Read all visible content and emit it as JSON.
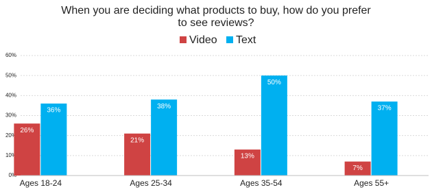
{
  "chart_data": {
    "type": "bar",
    "title": [
      "When you are deciding what products to buy, how do you prefer",
      "to see reviews?"
    ],
    "categories": [
      "Ages 18-24",
      "Ages 25-34",
      "Ages 35-54",
      "Ages 55+"
    ],
    "series": [
      {
        "name": "Video",
        "color": "#cf4343",
        "values": [
          26,
          21,
          13,
          7
        ],
        "value_labels": [
          "26%",
          "21%",
          "13%",
          "7%"
        ]
      },
      {
        "name": "Text",
        "color": "#00b0f0",
        "values": [
          36,
          38,
          50,
          37
        ],
        "value_labels": [
          "36%",
          "38%",
          "50%",
          "37%"
        ]
      }
    ],
    "ylim": [
      0,
      60
    ],
    "yticks": [
      {
        "value": 0,
        "label": "0%"
      },
      {
        "value": 10,
        "label": "10%"
      },
      {
        "value": 20,
        "label": "20%"
      },
      {
        "value": 30,
        "label": "30%"
      },
      {
        "value": 40,
        "label": "40%"
      },
      {
        "value": 50,
        "label": "50%"
      },
      {
        "value": 60,
        "label": "60%"
      }
    ],
    "grid": true
  }
}
